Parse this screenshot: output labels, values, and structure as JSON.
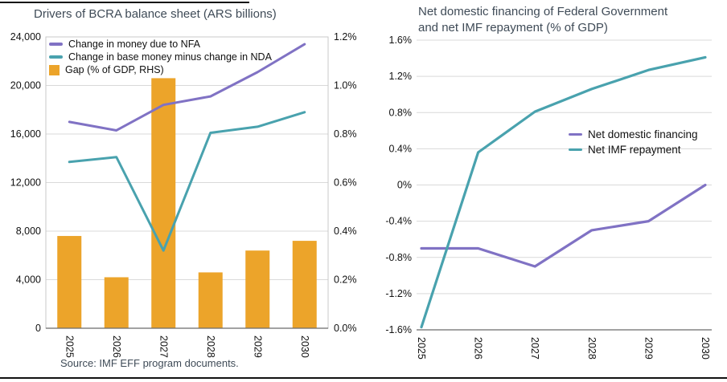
{
  "page": {
    "top_border_color": "#111111",
    "bottom_border_color": "#111111"
  },
  "style": {
    "grid_color": "#d9d9d9",
    "box_color": "#c9c9c9",
    "axis_color": "#6b6b6b",
    "tick_label_color": "#111111",
    "tick_font_size": 12.5
  },
  "chart_data": [
    {
      "type": "bar",
      "subtype": "combo bar + line, dual axis",
      "title": "Drivers of BCRA balance sheet (ARS billions)",
      "source": "Source: IMF EFF program documents.",
      "categories": [
        "2025",
        "2026",
        "2027",
        "2028",
        "2029",
        "2030"
      ],
      "left_axis": {
        "min": 0,
        "max": 24000,
        "step": 4000,
        "tick_labels": [
          "0",
          "4,000",
          "8,000",
          "12,000",
          "16,000",
          "20,000",
          "24,000"
        ]
      },
      "right_axis": {
        "min": 0,
        "max": 1.2,
        "step": 0.2,
        "tick_labels": [
          "0.0%",
          "0.2%",
          "0.4%",
          "0.6%",
          "0.8%",
          "1.0%",
          "1.2%"
        ]
      },
      "grid": true,
      "legend_position": "top-left-inside",
      "series": [
        {
          "name": "Change in money due to NFA",
          "type": "line",
          "axis": "left",
          "color": "#8072c4",
          "values": [
            17000,
            16300,
            18400,
            19100,
            21100,
            23400
          ]
        },
        {
          "name": "Change in base money minus change in NDA",
          "type": "line",
          "axis": "left",
          "color": "#49a2ae",
          "values": [
            13700,
            14100,
            6400,
            16100,
            16600,
            17800
          ]
        },
        {
          "name": "Gap (% of GDP, RHS)",
          "type": "bar",
          "axis": "right",
          "color": "#eca42a",
          "values": [
            0.38,
            0.21,
            1.03,
            0.23,
            0.32,
            0.36
          ]
        }
      ]
    },
    {
      "type": "line",
      "title": "Net domestic financing of Federal Government\nand net IMF repayment (% of GDP)",
      "categories": [
        "2025",
        "2026",
        "2027",
        "2028",
        "2029",
        "2030"
      ],
      "y_axis": {
        "min": -1.6,
        "max": 1.6,
        "step": 0.4,
        "tick_labels": [
          "-1.6%",
          "-1.2%",
          "-0.8%",
          "-0.4%",
          "0%",
          "0.4%",
          "0.8%",
          "1.2%",
          "1.6%"
        ]
      },
      "grid": true,
      "legend_position": "middle-right-inside",
      "series": [
        {
          "name": "Net domestic financing",
          "color": "#8072c4",
          "values": [
            -0.7,
            -0.7,
            -0.9,
            -0.5,
            -0.4,
            0.0
          ]
        },
        {
          "name": "Net IMF repayment",
          "color": "#49a2ae",
          "values": [
            -1.57,
            0.36,
            0.81,
            1.06,
            1.27,
            1.41
          ]
        }
      ]
    }
  ]
}
